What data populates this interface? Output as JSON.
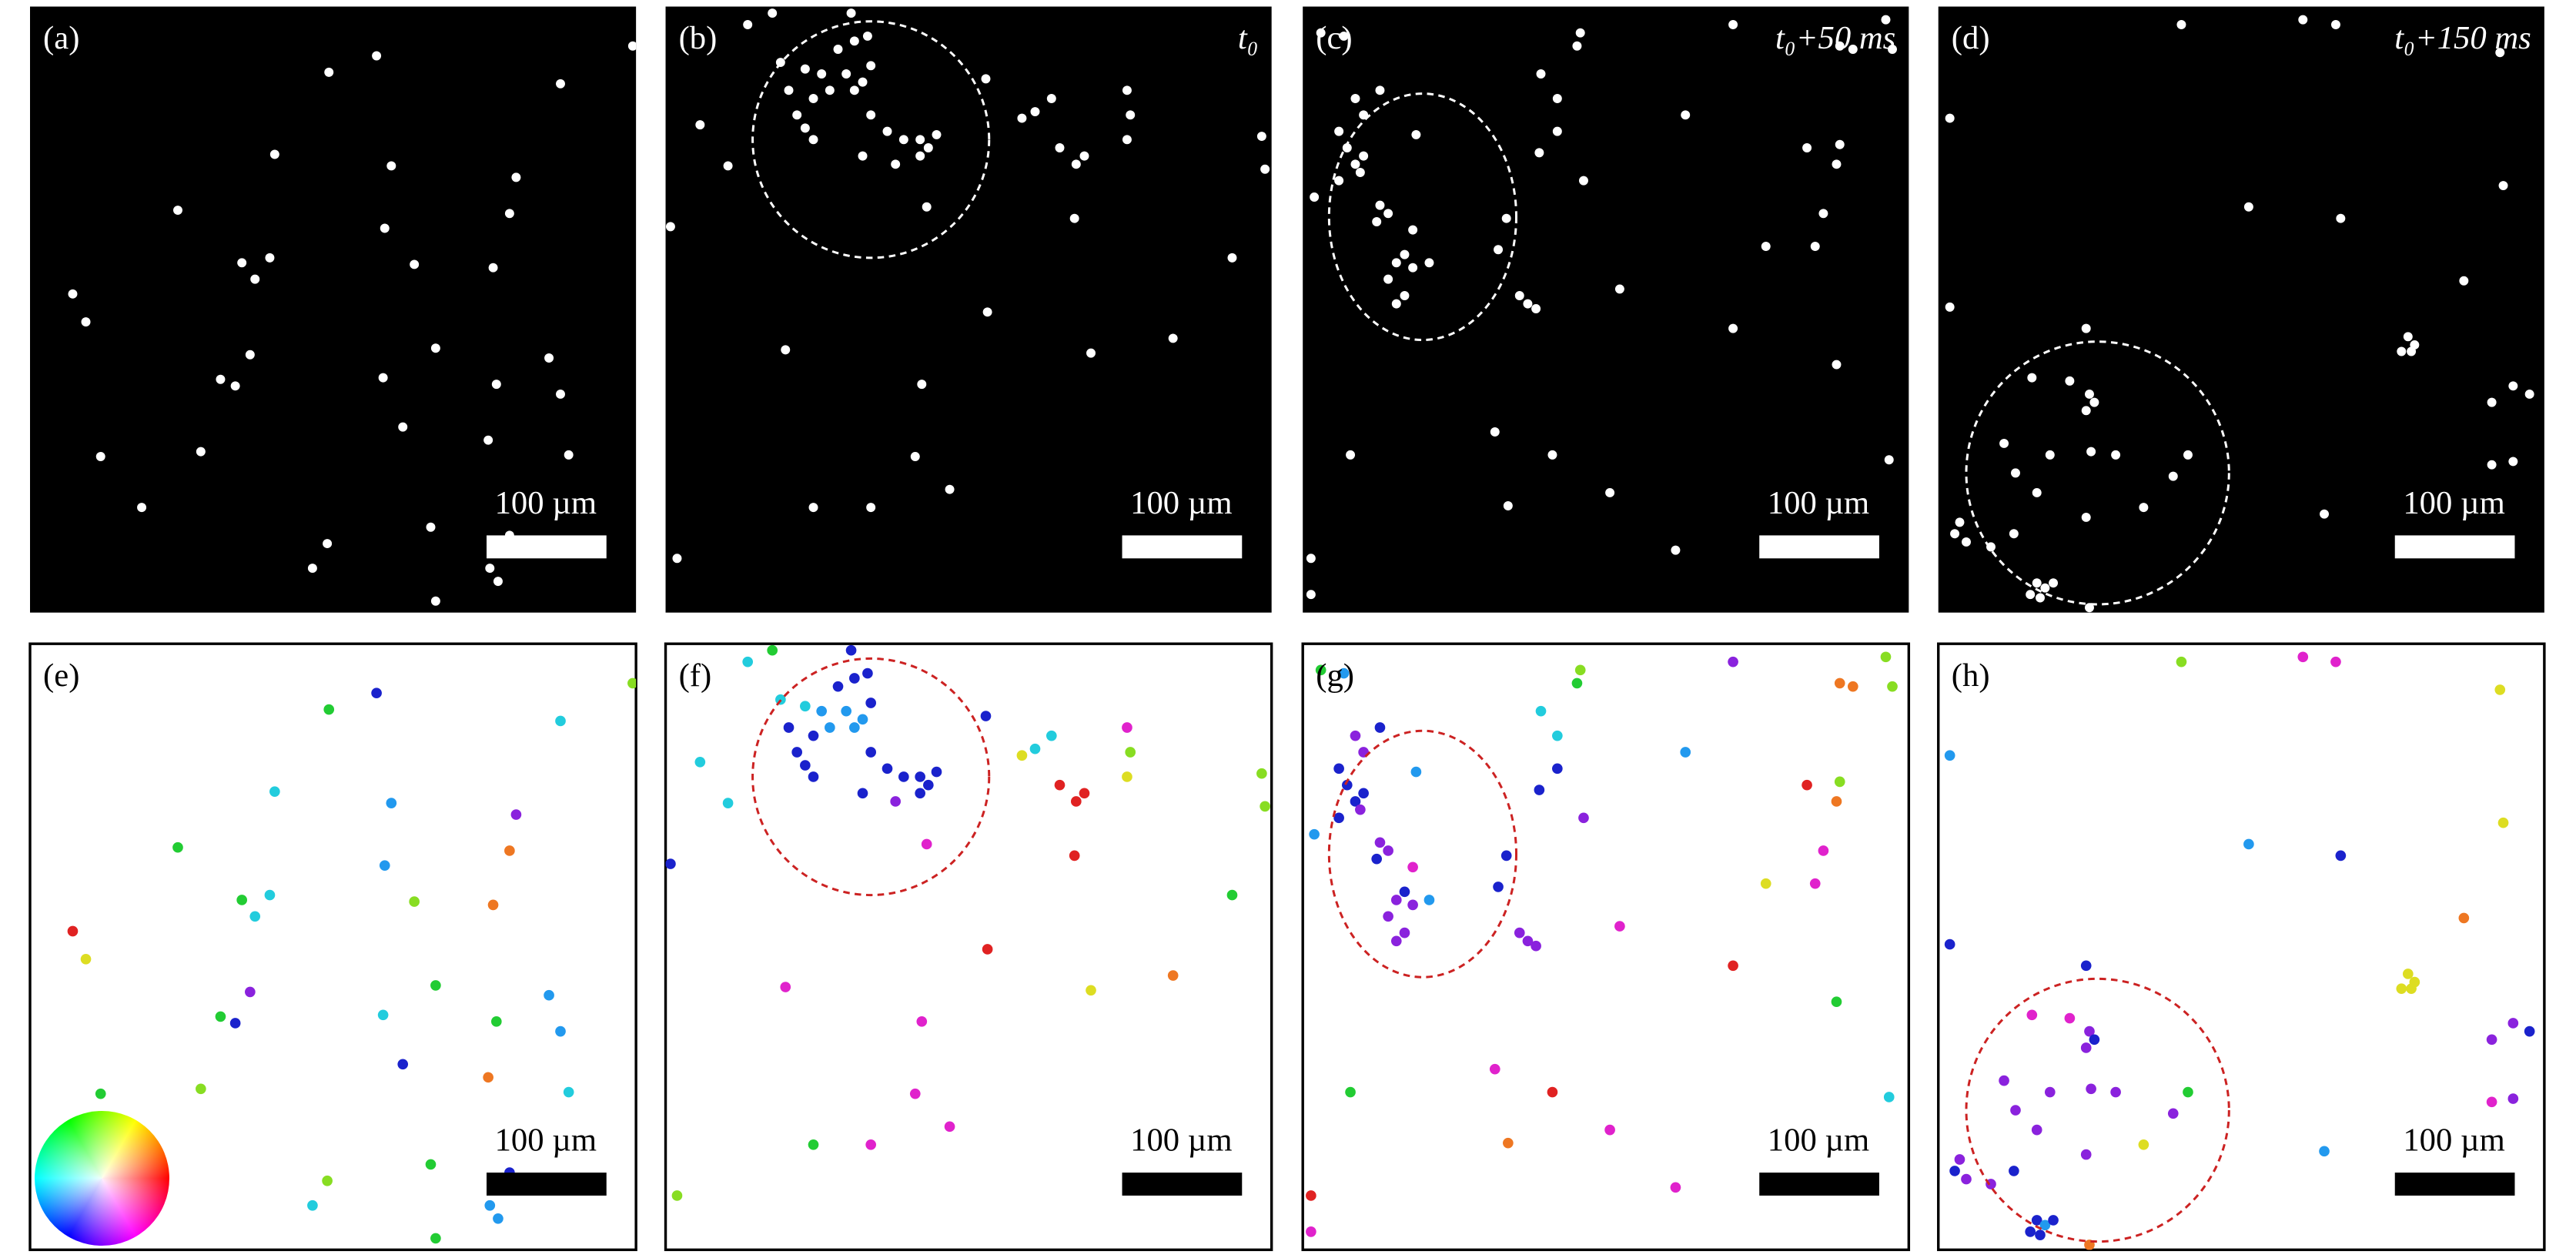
{
  "panels": [
    {
      "label": "(a)",
      "scale_bar": "100 µm"
    },
    {
      "label": "(b)",
      "time": "t₀",
      "scale_bar": "100 µm"
    },
    {
      "label": "(c)",
      "time": "t₀+50 ms",
      "scale_bar": "100 µm"
    },
    {
      "label": "(d)",
      "time": "t₀+150 ms",
      "scale_bar": "100 µm"
    },
    {
      "label": "(e)",
      "scale_bar": "100 µm"
    },
    {
      "label": "(f)",
      "scale_bar": "100 µm"
    },
    {
      "label": "(g)",
      "scale_bar": "100 µm"
    },
    {
      "label": "(h)",
      "scale_bar": "100 µm"
    }
  ]
}
